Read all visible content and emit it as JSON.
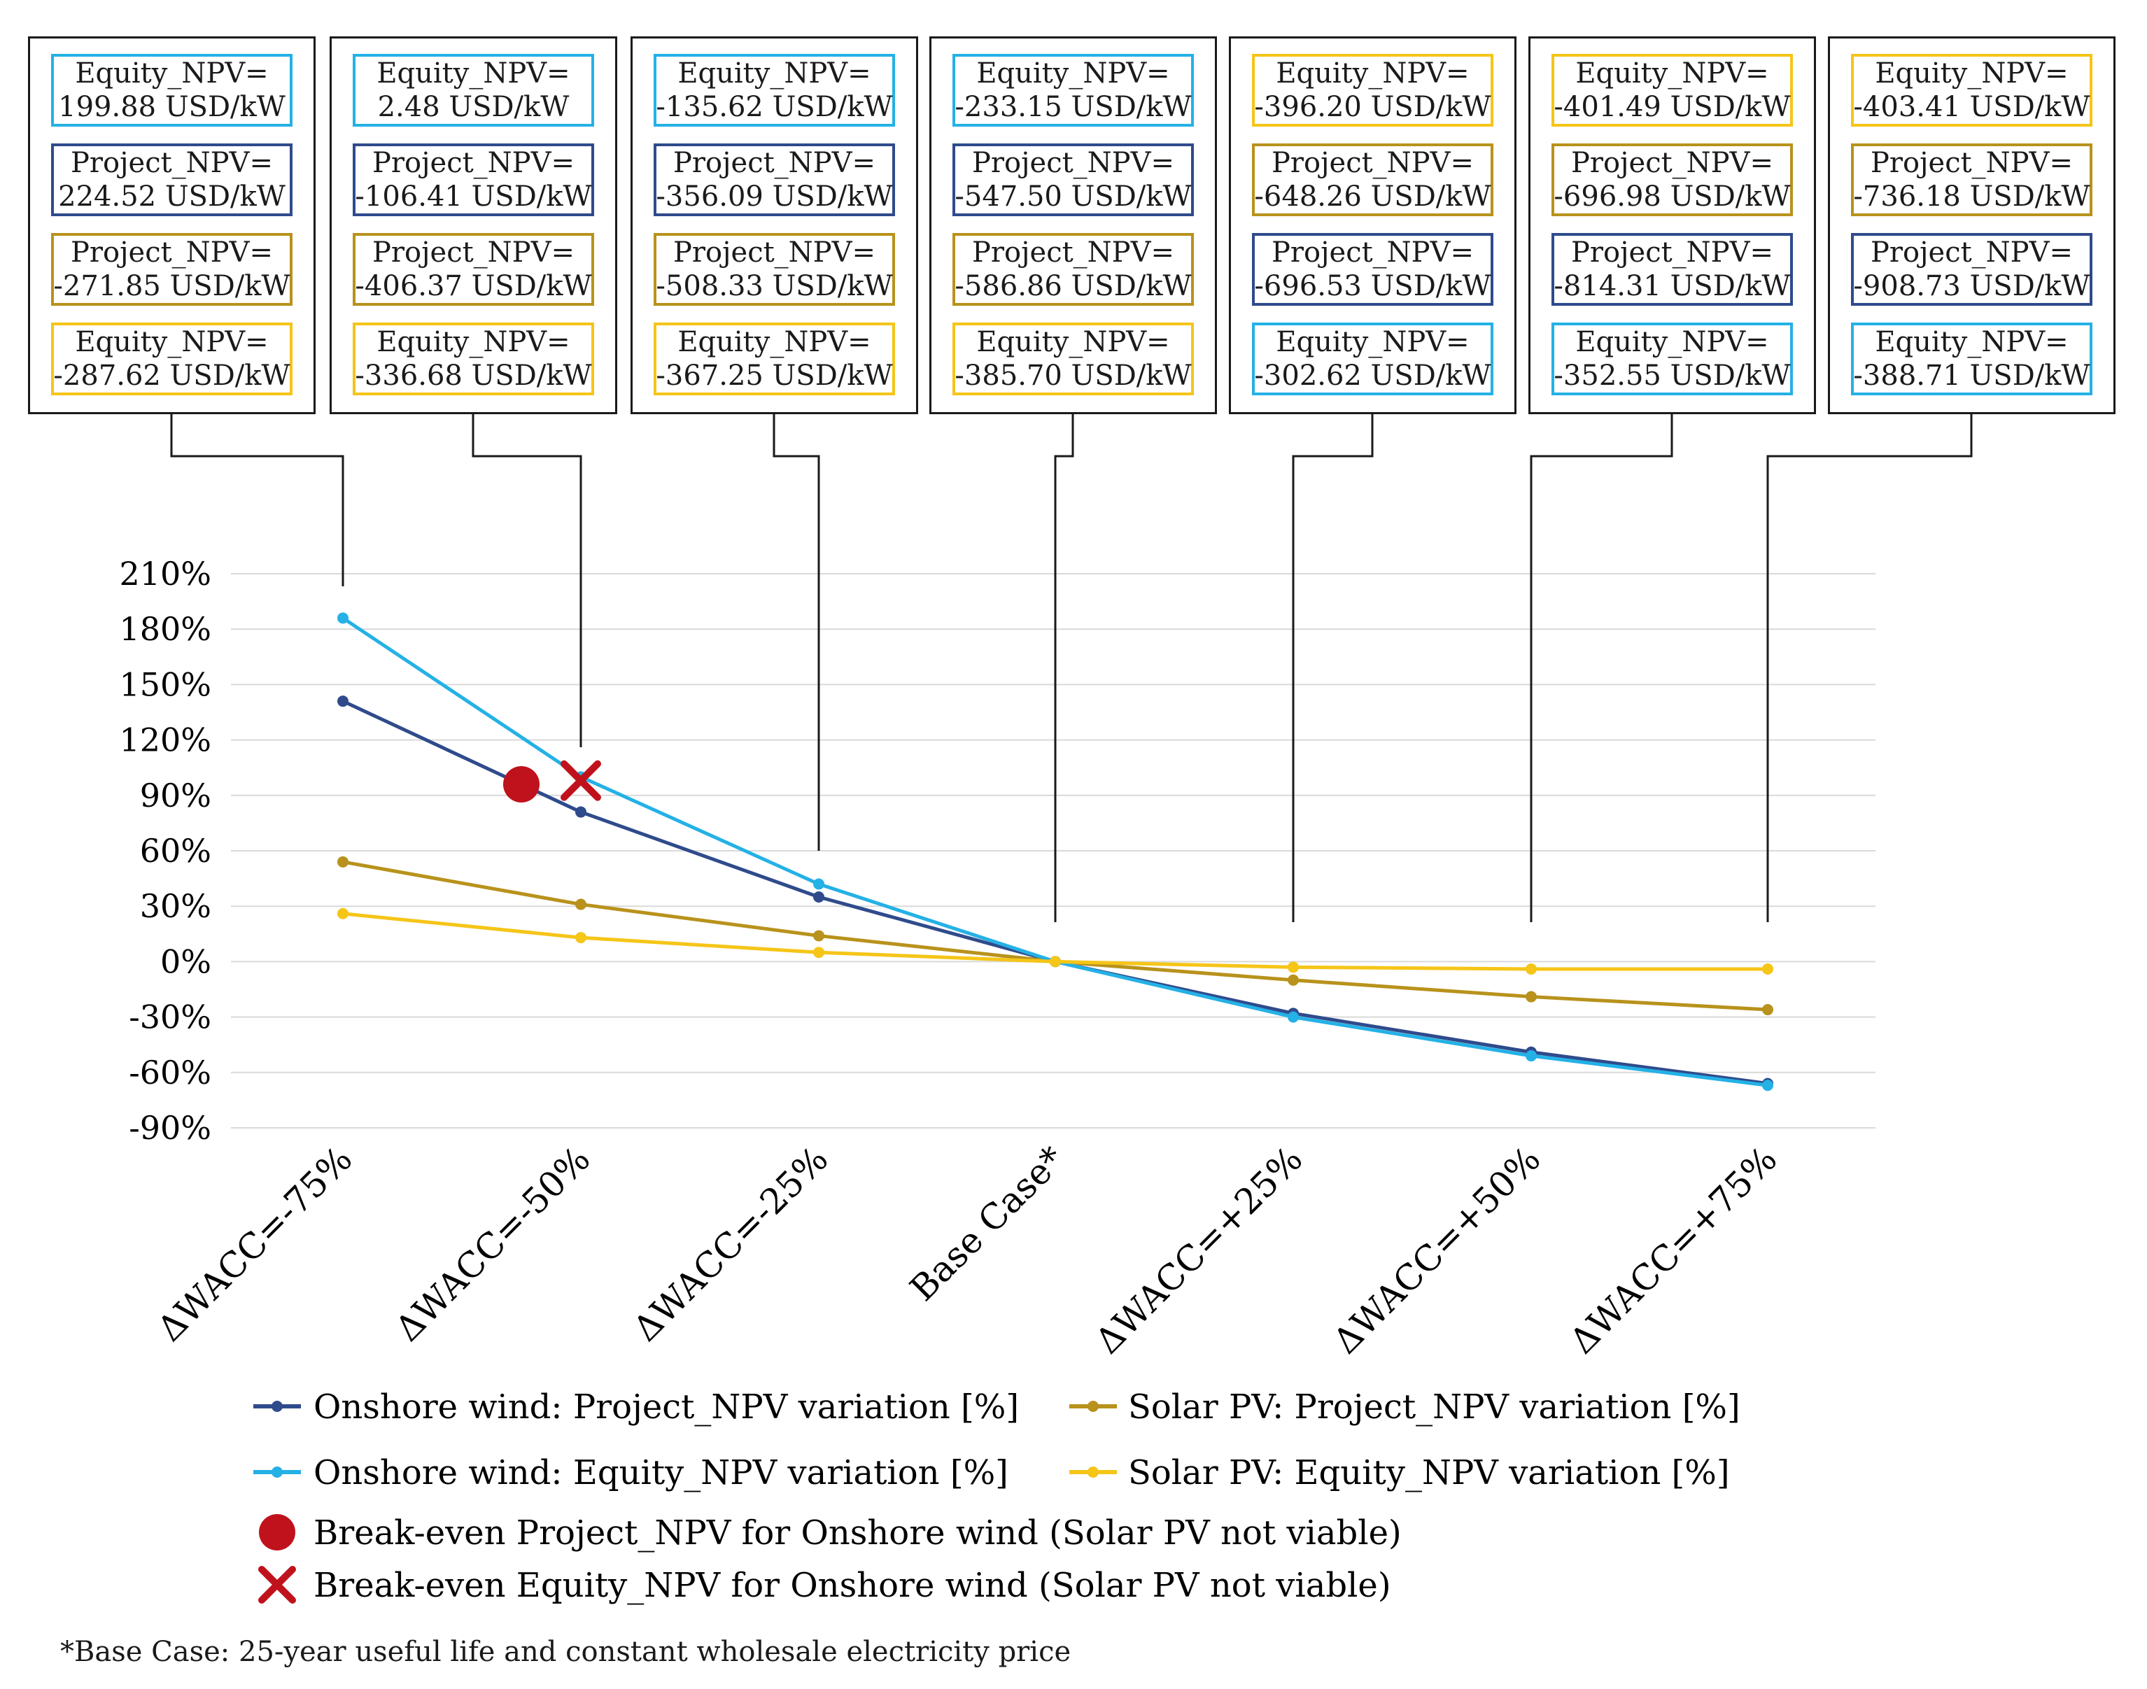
{
  "chart_data": {
    "type": "line",
    "categories": [
      "ΔWACC=-75%",
      "ΔWACC=-50%",
      "ΔWACC=-25%",
      "Base Case*",
      "ΔWACC=+25%",
      "ΔWACC=+50%",
      "ΔWACC=+75%"
    ],
    "yticks": [
      "210%",
      "180%",
      "150%",
      "120%",
      "90%",
      "60%",
      "30%",
      "0%",
      "-30%",
      "-60%",
      "-90%"
    ],
    "ylim": [
      -90,
      210
    ],
    "series": [
      {
        "name": "Onshore wind: Project_NPV variation [%]",
        "color": "#2f4b8c",
        "values": [
          141,
          81,
          35,
          0,
          -28,
          -49,
          -66
        ]
      },
      {
        "name": "Solar PV: Project_NPV variation [%]",
        "color": "#b8921c",
        "values": [
          54,
          31,
          14,
          0,
          -10,
          -19,
          -26
        ]
      },
      {
        "name": "Onshore wind: Equity_NPV variation [%]",
        "color": "#24b1e6",
        "values": [
          186,
          100,
          42,
          0,
          -30,
          -51,
          -67
        ]
      },
      {
        "name": "Solar PV: Equity_NPV variation [%]",
        "color": "#f5c518",
        "values": [
          26,
          13,
          5,
          0,
          -3,
          -4,
          -4
        ]
      }
    ],
    "markers": [
      {
        "name": "Break-even Project_NPV for Onshore wind (Solar PV not viable)",
        "type": "circle",
        "color": "#c0121c",
        "x": 0.75,
        "y": 96
      },
      {
        "name": "Break-even Equity_NPV for Onshore wind (Solar PV not viable)",
        "type": "cross",
        "color": "#c0121c",
        "x": 1.0,
        "y": 98
      }
    ]
  },
  "panels": [
    {
      "boxes": [
        {
          "l1": "Equity_NPV=",
          "l2": "199.88 USD/kW",
          "style": "ow-eq"
        },
        {
          "l1": "Project_NPV=",
          "l2": "224.52 USD/kW",
          "style": "ow-proj"
        },
        {
          "l1": "Project_NPV=",
          "l2": "-271.85 USD/kW",
          "style": "pv-proj"
        },
        {
          "l1": "Equity_NPV=",
          "l2": "-287.62 USD/kW",
          "style": "pv-eq"
        }
      ]
    },
    {
      "boxes": [
        {
          "l1": "Equity_NPV=",
          "l2": "2.48 USD/kW",
          "style": "ow-eq"
        },
        {
          "l1": "Project_NPV=",
          "l2": "-106.41 USD/kW",
          "style": "ow-proj"
        },
        {
          "l1": "Project_NPV=",
          "l2": "-406.37 USD/kW",
          "style": "pv-proj"
        },
        {
          "l1": "Equity_NPV=",
          "l2": "-336.68 USD/kW",
          "style": "pv-eq"
        }
      ]
    },
    {
      "boxes": [
        {
          "l1": "Equity_NPV=",
          "l2": "-135.62 USD/kW",
          "style": "ow-eq"
        },
        {
          "l1": "Project_NPV=",
          "l2": "-356.09 USD/kW",
          "style": "ow-proj"
        },
        {
          "l1": "Project_NPV=",
          "l2": "-508.33 USD/kW",
          "style": "pv-proj"
        },
        {
          "l1": "Equity_NPV=",
          "l2": "-367.25 USD/kW",
          "style": "pv-eq"
        }
      ]
    },
    {
      "boxes": [
        {
          "l1": "Equity_NPV=",
          "l2": "-233.15 USD/kW",
          "style": "ow-eq"
        },
        {
          "l1": "Project_NPV=",
          "l2": "-547.50 USD/kW",
          "style": "ow-proj"
        },
        {
          "l1": "Project_NPV=",
          "l2": "-586.86 USD/kW",
          "style": "pv-proj"
        },
        {
          "l1": "Equity_NPV=",
          "l2": "-385.70 USD/kW",
          "style": "pv-eq"
        }
      ]
    },
    {
      "boxes": [
        {
          "l1": "Equity_NPV=",
          "l2": "-396.20 USD/kW",
          "style": "pv-eq"
        },
        {
          "l1": "Project_NPV=",
          "l2": "-648.26 USD/kW",
          "style": "pv-proj"
        },
        {
          "l1": "Project_NPV=",
          "l2": "-696.53 USD/kW",
          "style": "ow-proj"
        },
        {
          "l1": "Equity_NPV=",
          "l2": "-302.62 USD/kW",
          "style": "ow-eq"
        }
      ]
    },
    {
      "boxes": [
        {
          "l1": "Equity_NPV=",
          "l2": "-401.49 USD/kW",
          "style": "pv-eq"
        },
        {
          "l1": "Project_NPV=",
          "l2": "-696.98 USD/kW",
          "style": "pv-proj"
        },
        {
          "l1": "Project_NPV=",
          "l2": "-814.31 USD/kW",
          "style": "ow-proj"
        },
        {
          "l1": "Equity_NPV=",
          "l2": "-352.55 USD/kW",
          "style": "ow-eq"
        }
      ]
    },
    {
      "boxes": [
        {
          "l1": "Equity_NPV=",
          "l2": "-403.41 USD/kW",
          "style": "pv-eq"
        },
        {
          "l1": "Project_NPV=",
          "l2": "-736.18 USD/kW",
          "style": "pv-proj"
        },
        {
          "l1": "Project_NPV=",
          "l2": "-908.73 USD/kW",
          "style": "ow-proj"
        },
        {
          "l1": "Equity_NPV=",
          "l2": "-388.71 USD/kW",
          "style": "ow-eq"
        }
      ]
    }
  ],
  "legend": {
    "ow_project": "Onshore wind: Project_NPV variation [%]",
    "pv_project": "Solar PV: Project_NPV variation [%]",
    "ow_equity": "Onshore wind: Equity_NPV variation [%]",
    "pv_equity": "Solar PV: Equity_NPV variation [%]",
    "breakeven_project": "Break-even Project_NPV for Onshore wind (Solar PV not viable)",
    "breakeven_equity": "Break-even Equity_NPV for Onshore wind (Solar PV not viable)"
  },
  "footnote": "*Base Case: 25-year useful life and constant wholesale electricity price"
}
